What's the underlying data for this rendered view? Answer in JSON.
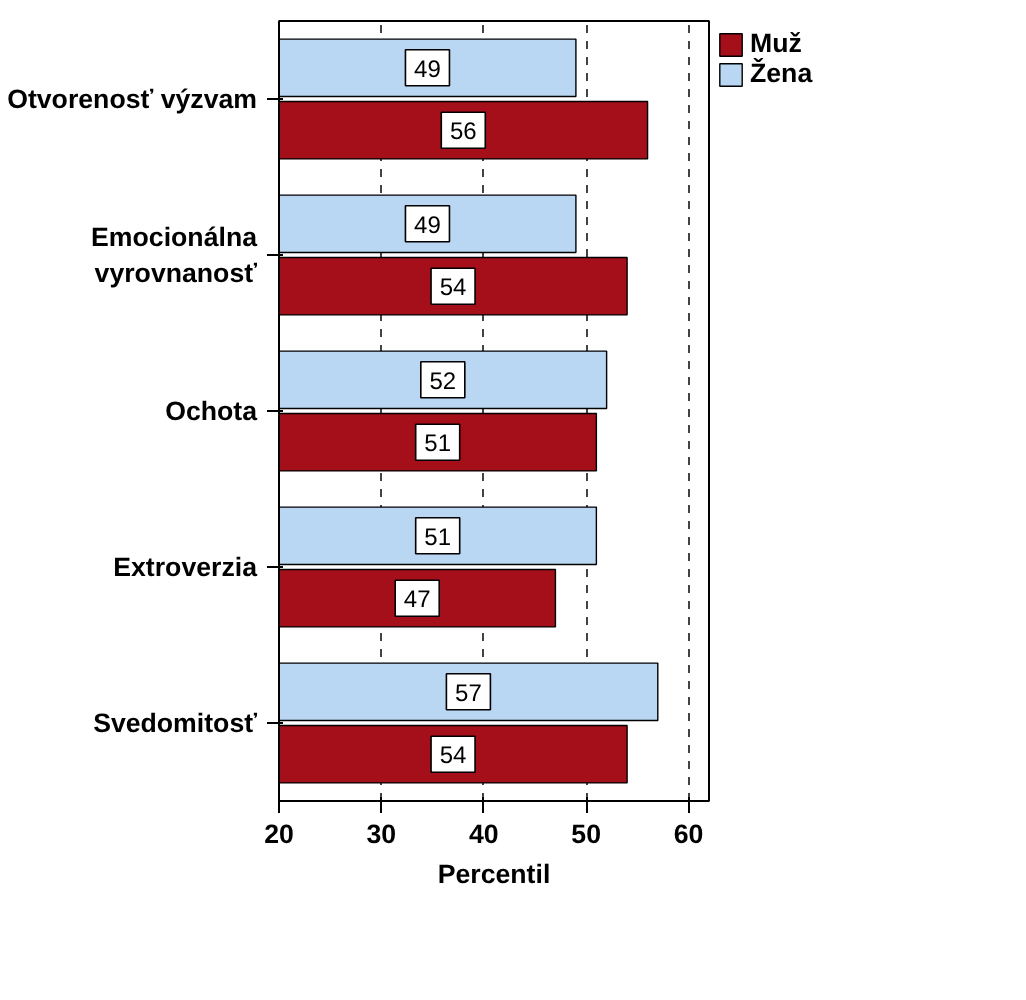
{
  "chart_data": {
    "type": "bar",
    "orientation": "horizontal",
    "xlabel": "Percentil",
    "categories": [
      "Otvorenosť výzvam",
      "Emocionálna\nvyrovnanosť",
      "Ochota",
      "Extroverzia",
      "Svedomitosť"
    ],
    "series": [
      {
        "name": "Muž",
        "color": "#a50f1a",
        "values": [
          56,
          54,
          51,
          47,
          54
        ]
      },
      {
        "name": "Žena",
        "color": "#b9d6f2",
        "values": [
          49,
          49,
          52,
          51,
          57
        ]
      }
    ],
    "xlim": [
      20,
      62
    ],
    "xticks": [
      20,
      30,
      40,
      50,
      60
    ],
    "grid": "x",
    "legend": "top right",
    "data_labels": true
  }
}
